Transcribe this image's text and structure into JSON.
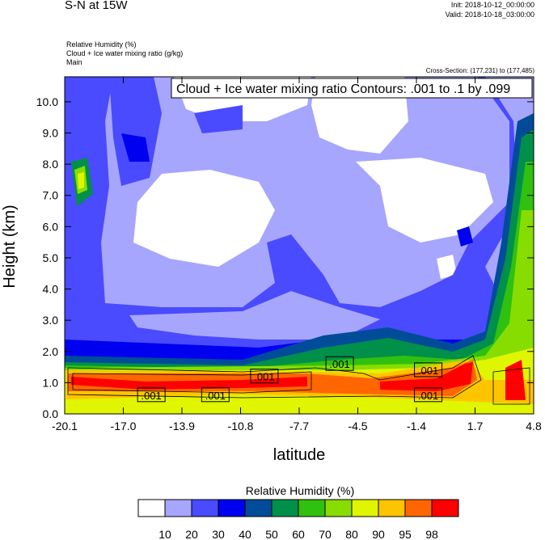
{
  "header": {
    "title": "S-N at 15W",
    "init": "Init: 2018-10-12_00:00:00",
    "valid": "Valid: 2018-10-18_03:00:00",
    "fields": [
      "Relative Humidity   (%)",
      "Cloud + Ice water mixing ratio   (g/kg)",
      "Main"
    ],
    "cross_section": "Cross-Section: (177,231) to (177,485)"
  },
  "chart_data": {
    "type": "heatmap",
    "title": "Cloud + Ice water mixing ratio Contours: .001 to .1 by .099",
    "xlabel": "latitude",
    "ylabel": "Height (km)",
    "xticks": [
      "-20.1",
      "-17.0",
      "-13.9",
      "-10.8",
      "-7.7",
      "-4.5",
      "-1.4",
      "1.7",
      "4.8"
    ],
    "yticks": [
      "0.0",
      "1.0",
      "2.0",
      "3.0",
      "4.0",
      "5.0",
      "6.0",
      "7.0",
      "8.0",
      "9.0",
      "10.0"
    ],
    "xlim": [
      -20.1,
      4.8
    ],
    "ylim": [
      0,
      10.8
    ],
    "contour_labels": [
      ".001",
      ".001",
      ".001",
      ".001",
      ".001",
      ".001"
    ],
    "colorbar": {
      "title": "Relative Humidity  (%)",
      "levels": [
        "10",
        "20",
        "30",
        "40",
        "50",
        "60",
        "70",
        "80",
        "90",
        "95",
        "98"
      ],
      "colors": [
        "#ffffff",
        "#a6a6ff",
        "#4a4aff",
        "#0000f0",
        "#004c99",
        "#00904a",
        "#30c010",
        "#88dd00",
        "#e0f500",
        "#ffc400",
        "#ff6600",
        "#ff0000"
      ]
    }
  }
}
